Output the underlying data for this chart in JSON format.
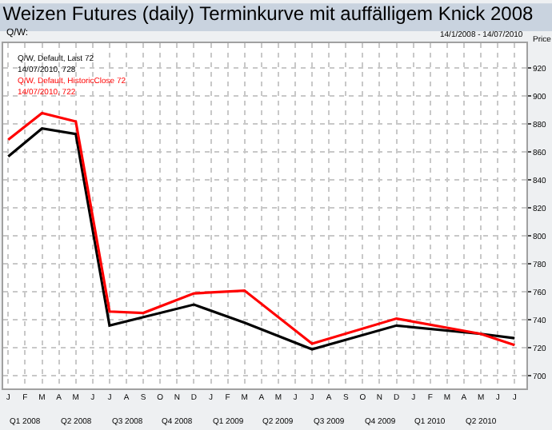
{
  "chart_data": {
    "type": "line",
    "title": "Weizen Futures (daily) Terminkurve mit auffälligem Knick 2008",
    "ylabel": "Price",
    "annotations": [
      "Q/W:",
      "14/1/2008 - 14/07/2010",
      "14/07/2010, 728",
      "14/07/2010, 722",
      "Q1 2008",
      "Q2 2008",
      "Q3 2008",
      "Q4 2008",
      "Q1 2009",
      "Q2 2009",
      "Q3 2009",
      "Q4 2009",
      "Q1 2010",
      "Q2 2010"
    ],
    "categories": [
      "J",
      "F",
      "M",
      "A",
      "M",
      "J",
      "J",
      "A",
      "S",
      "O",
      "N",
      "D",
      "J",
      "F",
      "M",
      "A",
      "M",
      "J",
      "J",
      "A",
      "S",
      "O",
      "N",
      "D",
      "J",
      "F",
      "M",
      "A",
      "M",
      "J",
      "J"
    ],
    "series": [
      {
        "name": "Q/W, Default, Last 72",
        "color": "#000000",
        "values": [
          857,
          null,
          877,
          null,
          873,
          null,
          736,
          null,
          null,
          null,
          null,
          751,
          null,
          null,
          738,
          null,
          null,
          null,
          719,
          null,
          null,
          null,
          null,
          736,
          null,
          null,
          null,
          null,
          730,
          null,
          727
        ]
      },
      {
        "name": "Q/W, Default, HistoricClose 72",
        "color": "#ff0000",
        "values": [
          869,
          null,
          888,
          null,
          882,
          null,
          746,
          null,
          745,
          null,
          null,
          759,
          null,
          null,
          761,
          null,
          null,
          null,
          723,
          null,
          null,
          null,
          null,
          741,
          null,
          null,
          null,
          null,
          730,
          null,
          722
        ]
      }
    ],
    "ylim": [
      691,
      938
    ],
    "yticks": [
      700,
      720,
      740,
      760,
      780,
      800,
      820,
      840,
      860,
      880,
      900,
      920
    ],
    "grid": true,
    "line_style": "solid"
  }
}
